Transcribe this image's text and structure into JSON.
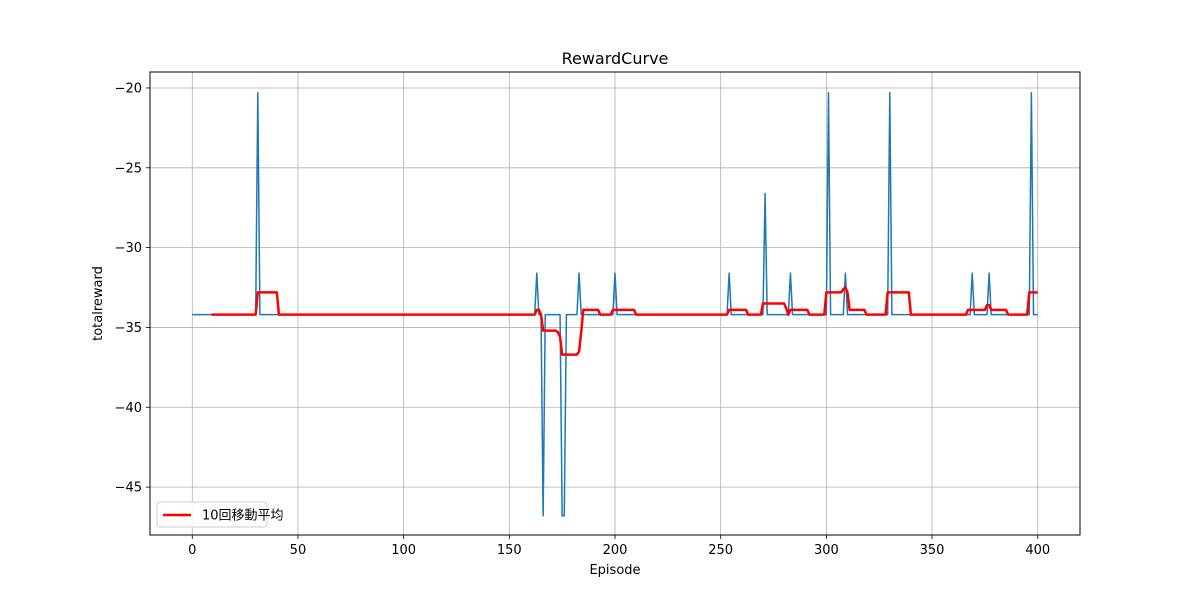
{
  "chart_data": {
    "type": "line",
    "title": "RewardCurve",
    "xlabel": "Episode",
    "ylabel": "totalreward",
    "xlim": [
      -20,
      420
    ],
    "ylim": [
      -48,
      -19
    ],
    "x_ticks": [
      0,
      50,
      100,
      150,
      200,
      250,
      300,
      350,
      400
    ],
    "y_ticks": [
      -20,
      -25,
      -30,
      -35,
      -40,
      -45
    ],
    "grid": true,
    "legend_position": "lower-left",
    "series": [
      {
        "name": "",
        "color": "#1f77b4",
        "x": [
          0,
          30,
          31,
          32,
          162,
          163,
          164,
          165,
          166,
          167,
          174,
          175,
          176,
          177,
          182,
          183,
          184,
          199,
          200,
          201,
          253,
          254,
          255,
          270,
          271,
          272,
          282,
          283,
          284,
          300,
          301,
          302,
          308,
          309,
          310,
          329,
          330,
          331,
          368,
          369,
          370,
          376,
          377,
          378,
          396,
          397,
          398,
          400
        ],
        "y": [
          -34.2,
          -34.2,
          -20.3,
          -34.2,
          -34.2,
          -31.6,
          -34.2,
          -34.2,
          -46.8,
          -34.2,
          -34.2,
          -46.8,
          -46.8,
          -34.2,
          -34.2,
          -31.6,
          -34.2,
          -34.2,
          -31.6,
          -34.2,
          -34.2,
          -31.6,
          -34.2,
          -34.2,
          -26.6,
          -34.2,
          -34.2,
          -31.6,
          -34.2,
          -34.2,
          -20.3,
          -34.2,
          -34.2,
          -31.6,
          -34.2,
          -34.2,
          -20.3,
          -34.2,
          -34.2,
          -31.6,
          -34.2,
          -34.2,
          -31.6,
          -34.2,
          -34.2,
          -20.3,
          -34.2,
          -34.2
        ]
      },
      {
        "name": "10回移動平均",
        "color": "#ff0000",
        "x": [
          9,
          30,
          31,
          40,
          41,
          162,
          163,
          164,
          165,
          166,
          172,
          173,
          174,
          175,
          182,
          183,
          184,
          185,
          186,
          192,
          193,
          198,
          199,
          200,
          209,
          210,
          253,
          254,
          255,
          262,
          263,
          269,
          270,
          271,
          280,
          281,
          282,
          283,
          291,
          292,
          299,
          300,
          301,
          307,
          308,
          309,
          310,
          311,
          318,
          319,
          328,
          329,
          330,
          339,
          340,
          366,
          367,
          368,
          375,
          376,
          377,
          378,
          385,
          386,
          395,
          396,
          397,
          400
        ],
        "y": [
          -34.2,
          -34.2,
          -32.8,
          -32.8,
          -34.2,
          -34.2,
          -33.9,
          -33.9,
          -34.2,
          -35.2,
          -35.2,
          -35.3,
          -35.6,
          -36.7,
          -36.7,
          -36.5,
          -35.3,
          -33.9,
          -33.9,
          -33.9,
          -34.2,
          -34.2,
          -33.9,
          -33.9,
          -33.9,
          -34.2,
          -34.2,
          -33.9,
          -33.9,
          -33.9,
          -34.2,
          -34.2,
          -33.5,
          -33.5,
          -33.5,
          -33.8,
          -34.2,
          -33.9,
          -33.9,
          -34.2,
          -34.2,
          -32.8,
          -32.8,
          -32.8,
          -32.6,
          -32.5,
          -32.8,
          -33.9,
          -33.9,
          -34.2,
          -34.2,
          -32.8,
          -32.8,
          -32.8,
          -34.2,
          -34.2,
          -33.9,
          -33.9,
          -33.9,
          -33.6,
          -33.6,
          -33.9,
          -33.9,
          -34.2,
          -34.2,
          -32.8,
          -32.8,
          -32.8
        ]
      }
    ]
  },
  "legend": {
    "label": "10回移動平均",
    "color": "#ff0000"
  }
}
